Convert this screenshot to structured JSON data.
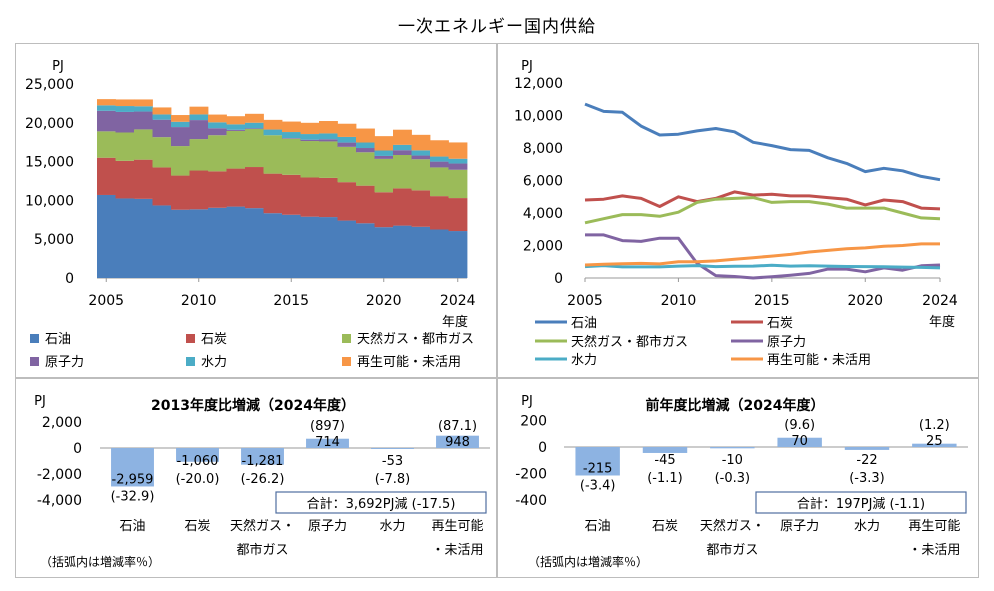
{
  "title": "一次エネルギー国内供給",
  "stacked_panel": {
    "unit": "PJ",
    "year_unit": "年度",
    "y_ticks": [
      "25,000",
      "20,000",
      "15,000",
      "10,000",
      "5,000",
      "0"
    ],
    "x_ticks": [
      "2005",
      "2010",
      "2015",
      "2020",
      "2024"
    ],
    "legend": [
      "石油",
      "石炭",
      "天然ガス・都市ガス",
      "原子力",
      "水力",
      "再生可能・未活用"
    ]
  },
  "line_panel": {
    "unit": "PJ",
    "year_unit": "年度",
    "y_ticks": [
      "12,000",
      "10,000",
      "8,000",
      "6,000",
      "4,000",
      "2,000",
      "0"
    ],
    "x_ticks": [
      "2005",
      "2010",
      "2015",
      "2020",
      "2024"
    ],
    "legend": [
      "石油",
      "石炭",
      "天然ガス・都市ガス",
      "原子力",
      "水力",
      "再生可能・未活用"
    ]
  },
  "bar_panel_2013": {
    "title": "2013年度比増減（2024年度）",
    "unit": "PJ",
    "y_ticks": [
      "2,000",
      "0",
      "-2,000",
      "-4,000"
    ],
    "categories": [
      "石油",
      "石炭",
      "天然ガス・",
      "原子力",
      "水力",
      "再生可能"
    ],
    "categories_line2": [
      "",
      "",
      "都市ガス",
      "",
      "",
      "・未活用"
    ],
    "value_labels": [
      "-2,959",
      "-1,060",
      "-1,281",
      "714",
      "-53",
      "948"
    ],
    "rate_labels": [
      "(-32.9)",
      "(-20.0)",
      "(-26.2)",
      "(897)",
      "(-7.8)",
      "(87.1)"
    ],
    "total": "合計：3,692PJ減 (-17.5)",
    "note": "（括弧内は増減率％）"
  },
  "bar_panel_prev": {
    "title": "前年度比増減（2024年度）",
    "unit": "PJ",
    "y_ticks": [
      "200",
      "0",
      "-200",
      "-400"
    ],
    "categories": [
      "石油",
      "石炭",
      "天然ガス・",
      "原子力",
      "水力",
      "再生可能"
    ],
    "categories_line2": [
      "",
      "",
      "都市ガス",
      "",
      "",
      "・未活用"
    ],
    "value_labels": [
      "-215",
      "-45",
      "-10",
      "70",
      "-22",
      "25"
    ],
    "rate_labels": [
      "(-3.4)",
      "(-1.1)",
      "(-0.3)",
      "(9.6)",
      "(-3.3)",
      "(1.2)"
    ],
    "total": "合計：197PJ減 (-1.1)",
    "note": "（括弧内は増減率％）"
  },
  "colors": {
    "oil": "#4a7ebb",
    "coal": "#c0504d",
    "gas": "#9bbb59",
    "nuclear": "#8064a2",
    "hydro": "#4bacc6",
    "renewable": "#f79646",
    "bar": "#8db3e2",
    "box_border": "#4f6fa0"
  },
  "chart_data": [
    {
      "type": "area",
      "title": "",
      "xlabel": "年度",
      "ylabel": "PJ",
      "ylim": [
        0,
        25000
      ],
      "x": [
        2005,
        2006,
        2007,
        2008,
        2009,
        2010,
        2011,
        2012,
        2013,
        2014,
        2015,
        2016,
        2017,
        2018,
        2019,
        2020,
        2021,
        2022,
        2023,
        2024
      ],
      "stacked": true,
      "series": [
        {
          "name": "石油",
          "values": [
            10700,
            10250,
            10200,
            9350,
            8800,
            8850,
            9050,
            9200,
            9000,
            8350,
            8150,
            7900,
            7850,
            7400,
            7050,
            6550,
            6750,
            6600,
            6250,
            6050
          ]
        },
        {
          "name": "石炭",
          "values": [
            4800,
            4850,
            5050,
            4900,
            4400,
            5000,
            4700,
            4900,
            5300,
            5100,
            5150,
            5050,
            5050,
            4950,
            4850,
            4500,
            4800,
            4700,
            4300,
            4250
          ]
        },
        {
          "name": "天然ガス・都市ガス",
          "values": [
            3400,
            3650,
            3900,
            3900,
            3800,
            4050,
            4650,
            4850,
            4900,
            4950,
            4650,
            4700,
            4700,
            4550,
            4300,
            4300,
            4300,
            4000,
            3700,
            3650
          ]
        },
        {
          "name": "原子力",
          "values": [
            2650,
            2650,
            2300,
            2250,
            2450,
            2450,
            900,
            150,
            90,
            0,
            80,
            170,
            280,
            550,
            550,
            380,
            620,
            480,
            750,
            800
          ]
        },
        {
          "name": "水力",
          "values": [
            700,
            760,
            680,
            680,
            680,
            730,
            760,
            700,
            720,
            730,
            780,
            730,
            750,
            730,
            710,
            700,
            690,
            670,
            650,
            620
          ]
        },
        {
          "name": "再生可能・未活用",
          "values": [
            800,
            850,
            880,
            900,
            870,
            1000,
            1000,
            1050,
            1150,
            1250,
            1350,
            1450,
            1600,
            1700,
            1800,
            1850,
            1950,
            2000,
            2100,
            2100
          ]
        }
      ]
    },
    {
      "type": "line",
      "title": "",
      "xlabel": "年度",
      "ylabel": "PJ",
      "ylim": [
        0,
        12000
      ],
      "x": [
        2005,
        2006,
        2007,
        2008,
        2009,
        2010,
        2011,
        2012,
        2013,
        2014,
        2015,
        2016,
        2017,
        2018,
        2019,
        2020,
        2021,
        2022,
        2023,
        2024
      ],
      "series": [
        {
          "name": "石油",
          "values": [
            10700,
            10250,
            10200,
            9350,
            8800,
            8850,
            9050,
            9200,
            9000,
            8350,
            8150,
            7900,
            7850,
            7400,
            7050,
            6550,
            6750,
            6600,
            6250,
            6050
          ]
        },
        {
          "name": "石炭",
          "values": [
            4800,
            4850,
            5050,
            4900,
            4400,
            5000,
            4700,
            4900,
            5300,
            5100,
            5150,
            5050,
            5050,
            4950,
            4850,
            4500,
            4800,
            4700,
            4300,
            4250
          ]
        },
        {
          "name": "天然ガス・都市ガス",
          "values": [
            3400,
            3650,
            3900,
            3900,
            3800,
            4050,
            4650,
            4850,
            4900,
            4950,
            4650,
            4700,
            4700,
            4550,
            4300,
            4300,
            4300,
            4000,
            3700,
            3650
          ]
        },
        {
          "name": "原子力",
          "values": [
            2650,
            2650,
            2300,
            2250,
            2450,
            2450,
            900,
            150,
            90,
            0,
            80,
            170,
            280,
            550,
            550,
            380,
            620,
            480,
            750,
            800
          ]
        },
        {
          "name": "水力",
          "values": [
            700,
            760,
            680,
            680,
            680,
            730,
            760,
            700,
            720,
            730,
            780,
            730,
            750,
            730,
            710,
            700,
            690,
            670,
            650,
            620
          ]
        },
        {
          "name": "再生可能・未活用",
          "values": [
            800,
            850,
            880,
            900,
            870,
            1000,
            1000,
            1050,
            1150,
            1250,
            1350,
            1450,
            1600,
            1700,
            1800,
            1850,
            1950,
            2000,
            2100,
            2100
          ]
        }
      ]
    },
    {
      "type": "bar",
      "title": "2013年度比増減（2024年度）",
      "ylabel": "PJ",
      "ylim": [
        -4000,
        2000
      ],
      "categories": [
        "石油",
        "石炭",
        "天然ガス・都市ガス",
        "原子力",
        "水力",
        "再生可能・未活用"
      ],
      "values": [
        -2959,
        -1060,
        -1281,
        714,
        -53,
        948
      ],
      "rates": [
        -32.9,
        -20.0,
        -26.2,
        897,
        -7.8,
        87.1
      ]
    },
    {
      "type": "bar",
      "title": "前年度比増減（2024年度）",
      "ylabel": "PJ",
      "ylim": [
        -400,
        200
      ],
      "categories": [
        "石油",
        "石炭",
        "天然ガス・都市ガス",
        "原子力",
        "水力",
        "再生可能・未活用"
      ],
      "values": [
        -215,
        -45,
        -10,
        70,
        -22,
        25
      ],
      "rates": [
        -3.4,
        -1.1,
        -0.3,
        9.6,
        -3.3,
        1.2
      ]
    }
  ]
}
